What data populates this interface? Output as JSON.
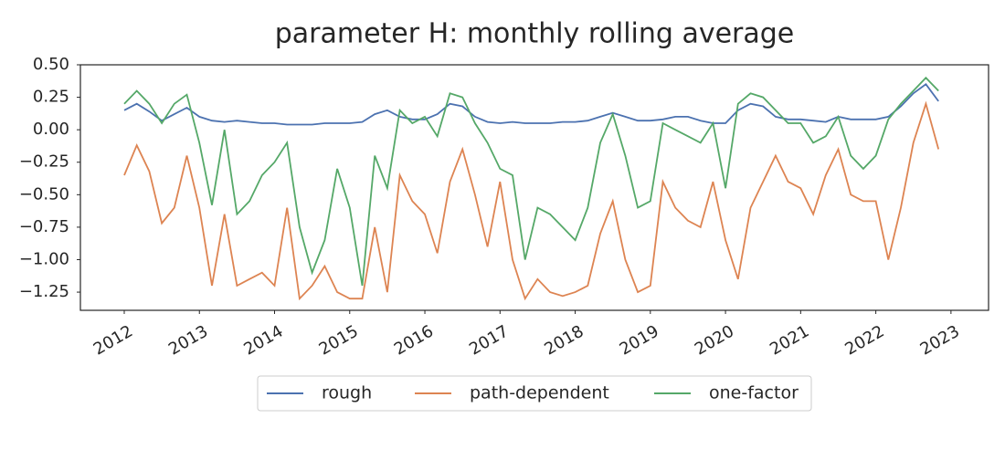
{
  "chart_data": {
    "type": "line",
    "title": "parameter H: monthly rolling average",
    "x": [
      "2012-01",
      "2012-03",
      "2012-05",
      "2012-07",
      "2012-09",
      "2012-11",
      "2013-01",
      "2013-03",
      "2013-05",
      "2013-07",
      "2013-09",
      "2013-11",
      "2014-01",
      "2014-03",
      "2014-05",
      "2014-07",
      "2014-09",
      "2014-11",
      "2015-01",
      "2015-03",
      "2015-05",
      "2015-07",
      "2015-09",
      "2015-11",
      "2016-01",
      "2016-03",
      "2016-05",
      "2016-07",
      "2016-09",
      "2016-11",
      "2017-01",
      "2017-03",
      "2017-05",
      "2017-07",
      "2017-09",
      "2017-11",
      "2018-01",
      "2018-03",
      "2018-05",
      "2018-07",
      "2018-09",
      "2018-11",
      "2019-01",
      "2019-03",
      "2019-05",
      "2019-07",
      "2019-09",
      "2019-11",
      "2020-01",
      "2020-03",
      "2020-05",
      "2020-07",
      "2020-09",
      "2020-11",
      "2021-01",
      "2021-03",
      "2021-05",
      "2021-07",
      "2021-09",
      "2021-11",
      "2022-01",
      "2022-03",
      "2022-05",
      "2022-07",
      "2022-09",
      "2022-11"
    ],
    "series": [
      {
        "name": "rough",
        "color": "#4c72b0",
        "values": [
          0.15,
          0.2,
          0.14,
          0.07,
          0.12,
          0.17,
          0.1,
          0.07,
          0.06,
          0.07,
          0.06,
          0.05,
          0.05,
          0.04,
          0.04,
          0.04,
          0.05,
          0.05,
          0.05,
          0.06,
          0.12,
          0.15,
          0.1,
          0.08,
          0.08,
          0.12,
          0.2,
          0.18,
          0.1,
          0.06,
          0.05,
          0.06,
          0.05,
          0.05,
          0.05,
          0.06,
          0.06,
          0.07,
          0.1,
          0.13,
          0.1,
          0.07,
          0.07,
          0.08,
          0.1,
          0.1,
          0.07,
          0.05,
          0.05,
          0.15,
          0.2,
          0.18,
          0.1,
          0.08,
          0.08,
          0.07,
          0.06,
          0.1,
          0.08,
          0.08,
          0.08,
          0.1,
          0.18,
          0.28,
          0.35,
          0.22
        ]
      },
      {
        "name": "path-dependent",
        "color": "#dd8452",
        "values": [
          -0.35,
          -0.12,
          -0.32,
          -0.72,
          -0.6,
          -0.2,
          -0.6,
          -1.2,
          -0.65,
          -1.2,
          -1.15,
          -1.1,
          -1.2,
          -0.6,
          -1.3,
          -1.2,
          -1.05,
          -1.25,
          -1.3,
          -1.3,
          -0.75,
          -1.25,
          -0.35,
          -0.55,
          -0.65,
          -0.95,
          -0.4,
          -0.15,
          -0.5,
          -0.9,
          -0.4,
          -1.0,
          -1.3,
          -1.15,
          -1.25,
          -1.28,
          -1.25,
          -1.2,
          -0.8,
          -0.55,
          -1.0,
          -1.25,
          -1.2,
          -0.4,
          -0.6,
          -0.7,
          -0.75,
          -0.4,
          -0.85,
          -1.15,
          -0.6,
          -0.4,
          -0.2,
          -0.4,
          -0.45,
          -0.65,
          -0.35,
          -0.15,
          -0.5,
          -0.55,
          -0.55,
          -1.0,
          -0.6,
          -0.1,
          0.2,
          -0.15
        ]
      },
      {
        "name": "one-factor",
        "color": "#55a868",
        "values": [
          0.2,
          0.3,
          0.2,
          0.05,
          0.2,
          0.27,
          -0.1,
          -0.58,
          0.0,
          -0.65,
          -0.55,
          -0.35,
          -0.25,
          -0.1,
          -0.75,
          -1.1,
          -0.85,
          -0.3,
          -0.6,
          -1.2,
          -0.2,
          -0.45,
          0.15,
          0.05,
          0.1,
          -0.05,
          0.28,
          0.25,
          0.05,
          -0.1,
          -0.3,
          -0.35,
          -1.0,
          -0.6,
          -0.65,
          -0.75,
          -0.85,
          -0.6,
          -0.1,
          0.12,
          -0.2,
          -0.6,
          -0.55,
          0.05,
          0.0,
          -0.05,
          -0.1,
          0.05,
          -0.45,
          0.2,
          0.28,
          0.25,
          0.15,
          0.05,
          0.05,
          -0.1,
          -0.05,
          0.1,
          -0.2,
          -0.3,
          -0.2,
          0.08,
          0.2,
          0.3,
          0.4,
          0.3
        ]
      }
    ],
    "xlim": [
      "2011-06",
      "2023-07"
    ],
    "xticks": [
      {
        "value": "2012-01",
        "label": "2012"
      },
      {
        "value": "2013-01",
        "label": "2013"
      },
      {
        "value": "2014-01",
        "label": "2014"
      },
      {
        "value": "2015-01",
        "label": "2015"
      },
      {
        "value": "2016-01",
        "label": "2016"
      },
      {
        "value": "2017-01",
        "label": "2017"
      },
      {
        "value": "2018-01",
        "label": "2018"
      },
      {
        "value": "2019-01",
        "label": "2019"
      },
      {
        "value": "2020-01",
        "label": "2020"
      },
      {
        "value": "2021-01",
        "label": "2021"
      },
      {
        "value": "2022-01",
        "label": "2022"
      },
      {
        "value": "2023-01",
        "label": "2023"
      }
    ],
    "ylim": [
      -1.39,
      0.5
    ],
    "yticks": [
      {
        "value": 0.5,
        "label": "0.50"
      },
      {
        "value": 0.25,
        "label": "0.25"
      },
      {
        "value": 0,
        "label": "0.00"
      },
      {
        "value": -0.25,
        "label": "−0.25"
      },
      {
        "value": -0.5,
        "label": "−0.50"
      },
      {
        "value": -0.75,
        "label": "−0.75"
      },
      {
        "value": -1,
        "label": "−1.00"
      },
      {
        "value": -1.25,
        "label": "−1.25"
      }
    ],
    "grid": false,
    "legend": "lower center"
  }
}
